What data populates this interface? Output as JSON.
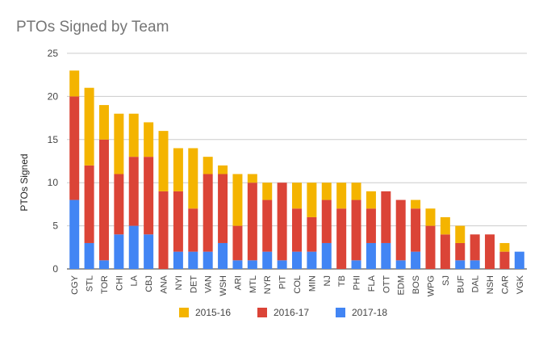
{
  "chart_data": {
    "type": "bar",
    "stacked": true,
    "title": "PTOs Signed by Team",
    "xlabel": "",
    "ylabel": "PTOs Signed",
    "ylim": [
      0,
      25
    ],
    "yticks": [
      0,
      5,
      10,
      15,
      20,
      25
    ],
    "grid": true,
    "legend_position": "bottom",
    "categories": [
      "CGY",
      "STL",
      "TOR",
      "CHI",
      "LA",
      "CBJ",
      "ANA",
      "NYI",
      "DET",
      "VAN",
      "WSH",
      "ARI",
      "MTL",
      "NYR",
      "PIT",
      "COL",
      "MIN",
      "NJ",
      "TB",
      "PHI",
      "FLA",
      "OTT",
      "EDM",
      "BOS",
      "WPG",
      "SJ",
      "BUF",
      "DAL",
      "NSH",
      "CAR",
      "VGK"
    ],
    "series": [
      {
        "name": "2017-18",
        "color": "#4285f4",
        "values": [
          8,
          3,
          1,
          4,
          5,
          4,
          0,
          2,
          2,
          2,
          3,
          1,
          1,
          2,
          1,
          2,
          2,
          3,
          0,
          1,
          3,
          3,
          1,
          2,
          0,
          0,
          1,
          1,
          0,
          0,
          2
        ]
      },
      {
        "name": "2016-17",
        "color": "#db4437",
        "values": [
          12,
          9,
          14,
          7,
          8,
          9,
          9,
          7,
          5,
          9,
          8,
          4,
          9,
          6,
          9,
          5,
          4,
          5,
          7,
          7,
          4,
          6,
          7,
          5,
          5,
          4,
          2,
          3,
          4,
          2,
          0
        ]
      },
      {
        "name": "2015-16",
        "color": "#f4b400",
        "values": [
          3,
          9,
          4,
          7,
          5,
          4,
          7,
          5,
          7,
          2,
          1,
          6,
          1,
          2,
          0,
          3,
          4,
          2,
          3,
          2,
          2,
          0,
          0,
          1,
          2,
          2,
          2,
          0,
          0,
          1,
          0
        ]
      }
    ],
    "legend_order": [
      "2015-16",
      "2016-17",
      "2017-18"
    ],
    "colors": {
      "title": "#757575",
      "axis_text": "#444444",
      "gridline": "#cccccc",
      "baseline": "#333333"
    }
  }
}
